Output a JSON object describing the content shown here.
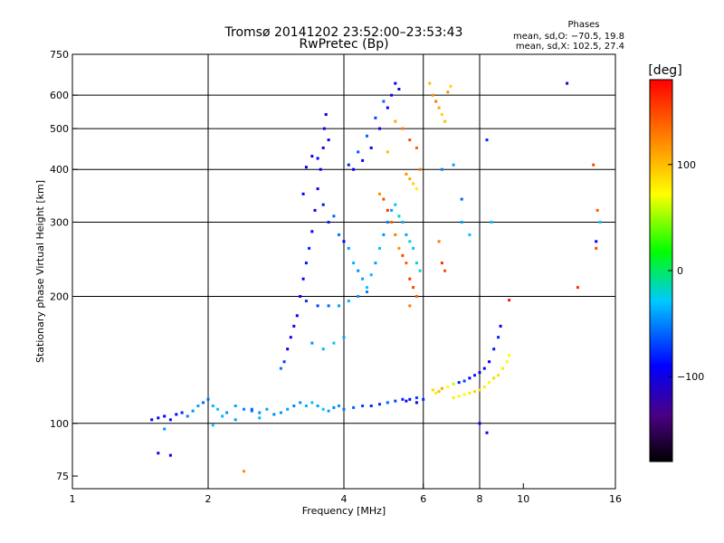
{
  "chart_data": {
    "type": "scatter",
    "title": "Tromsø 20141202 23:52:00–23:53:43",
    "subtitle": "RwPretec (Bp)",
    "xlabel": "Frequency [MHz]",
    "ylabel": "Stationary phase Virtual Height [km]",
    "x_scale": "log",
    "y_scale": "log",
    "xlim": [
      1,
      16
    ],
    "ylim": [
      70,
      750
    ],
    "x_ticks": [
      1,
      2,
      4,
      6,
      8,
      10,
      16
    ],
    "y_ticks": [
      75,
      100,
      200,
      300,
      400,
      500,
      600,
      750
    ],
    "x_gridlines": [
      2,
      4,
      6,
      8
    ],
    "y_gridlines": [
      100,
      200,
      300,
      400,
      500,
      600
    ],
    "grid": true,
    "legend": {
      "title": "Phases",
      "lines": [
        "mean, sd,O: −70.5, 19.8",
        "mean, sd,X: 102.5, 27.4"
      ],
      "placement": "top-right"
    },
    "colorbar": {
      "title": "[deg]",
      "ticks": [
        100,
        0,
        -100
      ],
      "tick_labels": [
        "100",
        "0",
        "−100"
      ],
      "range": [
        -180,
        180
      ],
      "colormap": "black-purple-blue-cyan-green-yellow-orange-red"
    },
    "points": [
      [
        1.5,
        102,
        -95
      ],
      [
        1.55,
        103,
        -95
      ],
      [
        1.6,
        104,
        -90
      ],
      [
        1.65,
        102,
        -85
      ],
      [
        1.7,
        105,
        -90
      ],
      [
        1.75,
        106,
        -80
      ],
      [
        1.8,
        104,
        -50
      ],
      [
        1.85,
        107,
        -45
      ],
      [
        1.9,
        110,
        -40
      ],
      [
        1.95,
        112,
        -55
      ],
      [
        2.0,
        114,
        -60
      ],
      [
        2.05,
        110,
        -35
      ],
      [
        2.1,
        108,
        -30
      ],
      [
        2.15,
        104,
        -35
      ],
      [
        2.2,
        106,
        -45
      ],
      [
        2.3,
        110,
        -40
      ],
      [
        2.4,
        108,
        -50
      ],
      [
        2.5,
        107,
        -55
      ],
      [
        2.6,
        106,
        -45
      ],
      [
        2.7,
        108,
        -40
      ],
      [
        2.8,
        105,
        -50
      ],
      [
        2.9,
        106,
        -45
      ],
      [
        3.0,
        108,
        -40
      ],
      [
        3.1,
        110,
        -50
      ],
      [
        3.2,
        112,
        -45
      ],
      [
        3.3,
        110,
        -35
      ],
      [
        3.4,
        112,
        -30
      ],
      [
        3.5,
        110,
        -40
      ],
      [
        3.6,
        108,
        -30
      ],
      [
        3.7,
        107,
        -40
      ],
      [
        3.8,
        109,
        -50
      ],
      [
        3.9,
        110,
        -45
      ],
      [
        4.0,
        108,
        -55
      ],
      [
        4.2,
        109,
        -60
      ],
      [
        4.4,
        110,
        -70
      ],
      [
        4.6,
        110,
        -80
      ],
      [
        4.8,
        111,
        -75
      ],
      [
        5.0,
        112,
        -60
      ],
      [
        5.2,
        113,
        -70
      ],
      [
        5.4,
        114,
        -80
      ],
      [
        5.6,
        114,
        -85
      ],
      [
        5.8,
        115,
        -70
      ],
      [
        2.05,
        99,
        -30
      ],
      [
        1.6,
        97,
        -45
      ],
      [
        1.55,
        85,
        -100
      ],
      [
        1.65,
        84,
        -95
      ],
      [
        2.3,
        102,
        -40
      ],
      [
        2.6,
        103,
        -35
      ],
      [
        2.9,
        135,
        -55
      ],
      [
        2.95,
        140,
        -70
      ],
      [
        3.0,
        150,
        -90
      ],
      [
        3.05,
        160,
        -100
      ],
      [
        3.1,
        170,
        -95
      ],
      [
        3.15,
        180,
        -90
      ],
      [
        3.2,
        200,
        -95
      ],
      [
        3.25,
        220,
        -90
      ],
      [
        3.3,
        240,
        -85
      ],
      [
        3.35,
        260,
        -80
      ],
      [
        3.4,
        285,
        -90
      ],
      [
        3.45,
        320,
        -95
      ],
      [
        3.5,
        360,
        -95
      ],
      [
        3.55,
        400,
        -90
      ],
      [
        3.6,
        450,
        -95
      ],
      [
        3.62,
        500,
        -90
      ],
      [
        3.65,
        540,
        -95
      ],
      [
        3.7,
        470,
        -100
      ],
      [
        3.5,
        425,
        -90
      ],
      [
        3.4,
        430,
        -95
      ],
      [
        3.3,
        405,
        -90
      ],
      [
        3.25,
        350,
        -90
      ],
      [
        3.6,
        330,
        -85
      ],
      [
        3.7,
        300,
        -80
      ],
      [
        3.8,
        310,
        -60
      ],
      [
        3.9,
        280,
        -55
      ],
      [
        4.0,
        270,
        -90
      ],
      [
        4.1,
        260,
        -40
      ],
      [
        4.2,
        240,
        -35
      ],
      [
        4.3,
        230,
        -45
      ],
      [
        4.4,
        220,
        -40
      ],
      [
        4.5,
        210,
        -30
      ],
      [
        4.6,
        225,
        -35
      ],
      [
        4.7,
        240,
        -40
      ],
      [
        4.8,
        260,
        -30
      ],
      [
        4.9,
        280,
        -45
      ],
      [
        5.0,
        300,
        -50
      ],
      [
        5.1,
        320,
        -40
      ],
      [
        5.2,
        330,
        -30
      ],
      [
        5.3,
        310,
        -20
      ],
      [
        5.4,
        300,
        -35
      ],
      [
        5.5,
        280,
        -40
      ],
      [
        5.6,
        270,
        -25
      ],
      [
        5.7,
        260,
        -30
      ],
      [
        5.8,
        240,
        -20
      ],
      [
        5.9,
        230,
        -25
      ],
      [
        3.3,
        195,
        -75
      ],
      [
        3.5,
        190,
        -70
      ],
      [
        3.7,
        190,
        -60
      ],
      [
        3.9,
        190,
        -40
      ],
      [
        4.1,
        195,
        -35
      ],
      [
        4.3,
        200,
        -45
      ],
      [
        4.5,
        205,
        -50
      ],
      [
        3.8,
        155,
        -30
      ],
      [
        4.0,
        160,
        -40
      ],
      [
        3.6,
        150,
        -35
      ],
      [
        3.4,
        155,
        -45
      ],
      [
        4.2,
        400,
        -90
      ],
      [
        4.4,
        420,
        -95
      ],
      [
        4.6,
        450,
        -90
      ],
      [
        4.8,
        500,
        -95
      ],
      [
        5.0,
        560,
        -90
      ],
      [
        5.1,
        600,
        -95
      ],
      [
        5.2,
        640,
        -90
      ],
      [
        5.3,
        620,
        -95
      ],
      [
        4.9,
        580,
        -60
      ],
      [
        4.7,
        530,
        -70
      ],
      [
        4.5,
        480,
        -60
      ],
      [
        4.3,
        440,
        -65
      ],
      [
        4.1,
        410,
        -80
      ],
      [
        5.5,
        390,
        120
      ],
      [
        5.6,
        380,
        110
      ],
      [
        5.7,
        370,
        90
      ],
      [
        5.8,
        360,
        80
      ],
      [
        5.9,
        400,
        130
      ],
      [
        5.8,
        450,
        140
      ],
      [
        5.6,
        470,
        150
      ],
      [
        5.4,
        500,
        130
      ],
      [
        5.2,
        520,
        110
      ],
      [
        5.0,
        440,
        100
      ],
      [
        4.8,
        350,
        120
      ],
      [
        4.9,
        340,
        150
      ],
      [
        5.0,
        320,
        160
      ],
      [
        5.1,
        300,
        140
      ],
      [
        5.2,
        280,
        130
      ],
      [
        5.3,
        260,
        120
      ],
      [
        5.4,
        250,
        150
      ],
      [
        5.5,
        240,
        140
      ],
      [
        5.6,
        220,
        160
      ],
      [
        5.7,
        210,
        150
      ],
      [
        5.8,
        200,
        140
      ],
      [
        5.6,
        190,
        130
      ],
      [
        6.2,
        640,
        100
      ],
      [
        6.3,
        600,
        120
      ],
      [
        6.4,
        580,
        130
      ],
      [
        6.5,
        560,
        110
      ],
      [
        6.6,
        540,
        90
      ],
      [
        6.7,
        520,
        100
      ],
      [
        6.8,
        610,
        120
      ],
      [
        6.9,
        630,
        90
      ],
      [
        6.5,
        270,
        130
      ],
      [
        6.6,
        240,
        160
      ],
      [
        6.7,
        230,
        150
      ],
      [
        6.3,
        120,
        90
      ],
      [
        6.4,
        118,
        80
      ],
      [
        6.5,
        119,
        100
      ],
      [
        6.6,
        121,
        110
      ],
      [
        6.8,
        122,
        70
      ],
      [
        7.0,
        124,
        60
      ],
      [
        7.2,
        125,
        -80
      ],
      [
        7.4,
        126,
        -70
      ],
      [
        7.6,
        128,
        -90
      ],
      [
        7.8,
        130,
        -80
      ],
      [
        8.0,
        132,
        -100
      ],
      [
        8.2,
        135,
        -95
      ],
      [
        8.4,
        140,
        -90
      ],
      [
        8.6,
        150,
        -85
      ],
      [
        8.8,
        160,
        -80
      ],
      [
        8.9,
        170,
        -90
      ],
      [
        7.0,
        115,
        80
      ],
      [
        7.2,
        116,
        75
      ],
      [
        7.4,
        117,
        70
      ],
      [
        7.6,
        118,
        80
      ],
      [
        7.8,
        119,
        90
      ],
      [
        8.0,
        120,
        85
      ],
      [
        8.2,
        122,
        80
      ],
      [
        8.4,
        125,
        75
      ],
      [
        8.6,
        128,
        90
      ],
      [
        8.8,
        130,
        85
      ],
      [
        9.0,
        135,
        80
      ],
      [
        9.2,
        140,
        75
      ],
      [
        9.3,
        145,
        70
      ],
      [
        8.5,
        300,
        -30
      ],
      [
        8.0,
        100,
        -90
      ],
      [
        8.3,
        95,
        -100
      ],
      [
        7.3,
        300,
        -40
      ],
      [
        7.6,
        280,
        -30
      ],
      [
        6.6,
        400,
        -50
      ],
      [
        7.0,
        410,
        -40
      ],
      [
        7.3,
        340,
        -60
      ],
      [
        8.3,
        470,
        -80
      ],
      [
        12.5,
        640,
        -100
      ],
      [
        14.3,
        410,
        150
      ],
      [
        14.6,
        320,
        140
      ],
      [
        14.8,
        300,
        -30
      ],
      [
        14.5,
        270,
        -100
      ],
      [
        14.5,
        260,
        150
      ],
      [
        13.2,
        210,
        160
      ],
      [
        9.3,
        196,
        170
      ],
      [
        5.5,
        113,
        -90
      ],
      [
        5.8,
        112,
        -95
      ],
      [
        6.0,
        114,
        -80
      ],
      [
        2.4,
        77,
        120
      ],
      [
        2.5,
        108,
        -60
      ]
    ]
  }
}
